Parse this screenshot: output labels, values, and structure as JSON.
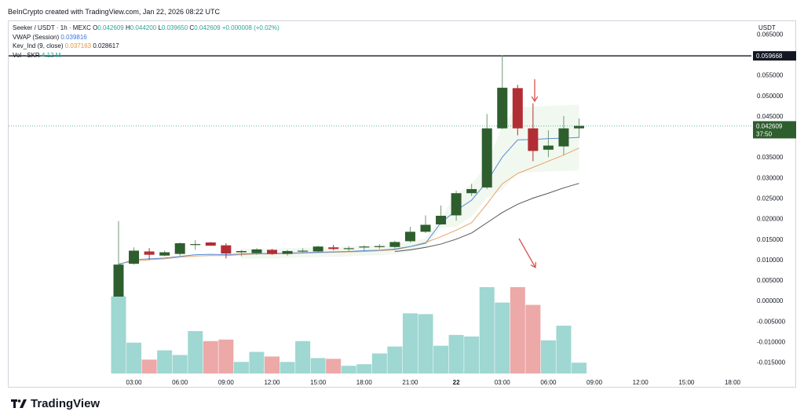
{
  "header": {
    "credit": "BeInCrypto created with TradingView.com, Jan 22, 2026 08:22 UTC"
  },
  "legend": {
    "symbol": "Seeker / USDT · 1h · MEXC",
    "o_label": "O",
    "o_value": "0.042609",
    "h_label": "H",
    "h_value": "0.044200",
    "l_label": "L",
    "l_value": "0.039650",
    "c_label": "C",
    "c_value": "0.042609",
    "change": "+0.000008 (+0.02%)",
    "vwap_label": "VWAP (Session)",
    "vwap_value": "0.039816",
    "kev_label": "Kev_Ind (9, close)",
    "kev_value1": "0.037163",
    "kev_value2": "0.028617",
    "vol_label": "Vol · SKR",
    "vol_value": "4.12 M"
  },
  "price_axis": {
    "currency": "USDT",
    "ticks": [
      "0.065000",
      "0.055000",
      "0.050000",
      "0.045000",
      "0.035000",
      "0.030000",
      "0.025000",
      "0.020000",
      "0.015000",
      "0.010000",
      "0.005000",
      "0.000000",
      "-0.005000",
      "-0.010000",
      "-0.015000"
    ],
    "resistance_tag": "0.059668",
    "price_tag": "0.042609",
    "countdown_tag": "37:50"
  },
  "time_axis": {
    "ticks": [
      "03:00",
      "06:00",
      "09:00",
      "12:00",
      "15:00",
      "18:00",
      "21:00",
      "22",
      "03:00",
      "06:00",
      "09:00",
      "12:00",
      "15:00",
      "18:00"
    ]
  },
  "colors": {
    "up": "#2e5e2e",
    "down": "#b22e35",
    "vol_up": "#9fd7d2",
    "vol_down": "#eda8a8",
    "vwap": "#5b8bd6",
    "kev_fast": "#e8a265",
    "kev_slow": "#555555",
    "arrow": "#d9534f"
  },
  "chart_data": {
    "type": "candlestick",
    "title": "Seeker / USDT · 1h · MEXC",
    "xlabel": "",
    "ylabel": "",
    "ylim": [
      -0.0185,
      0.0685
    ],
    "resistance_level": 0.059668,
    "last_price": 0.042609,
    "times": [
      "02:00",
      "03:00",
      "04:00",
      "05:00",
      "06:00",
      "07:00",
      "08:00",
      "09:00",
      "10:00",
      "11:00",
      "12:00",
      "13:00",
      "14:00",
      "15:00",
      "16:00",
      "17:00",
      "18:00",
      "19:00",
      "20:00",
      "21:00",
      "22:00",
      "23:00",
      "00:00",
      "01:00",
      "02:00",
      "03:00",
      "04:00",
      "05:00",
      "06:00",
      "07:00",
      "08:00"
    ],
    "candles": [
      {
        "o": 0.001,
        "h": 0.0194,
        "l": 0.001,
        "c": 0.0088
      },
      {
        "o": 0.009,
        "h": 0.013,
        "l": 0.0088,
        "c": 0.0122
      },
      {
        "o": 0.012,
        "h": 0.0128,
        "l": 0.01,
        "c": 0.0112
      },
      {
        "o": 0.011,
        "h": 0.0122,
        "l": 0.0108,
        "c": 0.0118
      },
      {
        "o": 0.0114,
        "h": 0.0142,
        "l": 0.011,
        "c": 0.014
      },
      {
        "o": 0.0137,
        "h": 0.0148,
        "l": 0.0124,
        "c": 0.0138
      },
      {
        "o": 0.0142,
        "h": 0.0143,
        "l": 0.0134,
        "c": 0.0134
      },
      {
        "o": 0.0135,
        "h": 0.014,
        "l": 0.0103,
        "c": 0.0115
      },
      {
        "o": 0.0118,
        "h": 0.0124,
        "l": 0.0108,
        "c": 0.0121
      },
      {
        "o": 0.0116,
        "h": 0.0128,
        "l": 0.0112,
        "c": 0.0125
      },
      {
        "o": 0.0124,
        "h": 0.0126,
        "l": 0.0112,
        "c": 0.0114
      },
      {
        "o": 0.0114,
        "h": 0.0124,
        "l": 0.011,
        "c": 0.0121
      },
      {
        "o": 0.012,
        "h": 0.0128,
        "l": 0.0118,
        "c": 0.0122
      },
      {
        "o": 0.012,
        "h": 0.0134,
        "l": 0.0118,
        "c": 0.0132
      },
      {
        "o": 0.013,
        "h": 0.0136,
        "l": 0.0123,
        "c": 0.0126
      },
      {
        "o": 0.0126,
        "h": 0.0133,
        "l": 0.012,
        "c": 0.0128
      },
      {
        "o": 0.013,
        "h": 0.0135,
        "l": 0.0123,
        "c": 0.0132
      },
      {
        "o": 0.0131,
        "h": 0.0138,
        "l": 0.0126,
        "c": 0.0133
      },
      {
        "o": 0.0131,
        "h": 0.0146,
        "l": 0.0127,
        "c": 0.0143
      },
      {
        "o": 0.0145,
        "h": 0.018,
        "l": 0.0142,
        "c": 0.0168
      },
      {
        "o": 0.0168,
        "h": 0.0208,
        "l": 0.0165,
        "c": 0.0185
      },
      {
        "o": 0.0186,
        "h": 0.0232,
        "l": 0.0185,
        "c": 0.0207
      },
      {
        "o": 0.0208,
        "h": 0.0268,
        "l": 0.0195,
        "c": 0.0262
      },
      {
        "o": 0.0262,
        "h": 0.0285,
        "l": 0.0255,
        "c": 0.0272
      },
      {
        "o": 0.0276,
        "h": 0.0455,
        "l": 0.0272,
        "c": 0.042
      },
      {
        "o": 0.042,
        "h": 0.0598,
        "l": 0.0418,
        "c": 0.0519
      },
      {
        "o": 0.0518,
        "h": 0.0526,
        "l": 0.0403,
        "c": 0.042
      },
      {
        "o": 0.042,
        "h": 0.0481,
        "l": 0.034,
        "c": 0.0365
      },
      {
        "o": 0.0368,
        "h": 0.0415,
        "l": 0.035,
        "c": 0.0378
      },
      {
        "o": 0.0376,
        "h": 0.045,
        "l": 0.0355,
        "c": 0.042
      },
      {
        "o": 0.042,
        "h": 0.0444,
        "l": 0.0397,
        "c": 0.0426
      }
    ],
    "volume": [
      100,
      40,
      18,
      30,
      24,
      55,
      42,
      44,
      15,
      28,
      22,
      15,
      42,
      20,
      19,
      10,
      12,
      26,
      35,
      78,
      77,
      36,
      50,
      48,
      112,
      92,
      112,
      89,
      43,
      62,
      14
    ],
    "vwap": [
      0.0088,
      0.01,
      0.0102,
      0.0104,
      0.0108,
      0.0112,
      0.0113,
      0.0112,
      0.0114,
      0.0115,
      0.0115,
      0.0116,
      0.0117,
      0.0118,
      0.0119,
      0.012,
      0.0122,
      0.0123,
      0.0126,
      0.0132,
      0.014,
      0.019,
      0.022,
      0.0245,
      0.029,
      0.035,
      0.0392,
      0.0393,
      0.0395,
      0.0396,
      0.0398
    ],
    "kev_fast": [
      0.009,
      0.0096,
      0.01,
      0.0102,
      0.0106,
      0.0109,
      0.011,
      0.011,
      0.0112,
      0.0114,
      0.0114,
      0.0115,
      0.0116,
      0.0117,
      0.0118,
      0.0119,
      0.012,
      0.0122,
      0.0124,
      0.0132,
      0.0142,
      0.0156,
      0.0172,
      0.019,
      0.0236,
      0.0285,
      0.031,
      0.0325,
      0.034,
      0.0355,
      0.0372
    ],
    "kev_slow": [
      null,
      null,
      null,
      null,
      null,
      null,
      null,
      null,
      null,
      null,
      null,
      null,
      null,
      null,
      null,
      null,
      null,
      null,
      0.012,
      0.0124,
      0.013,
      0.0138,
      0.015,
      0.0165,
      0.019,
      0.0215,
      0.0235,
      0.025,
      0.0262,
      0.0275,
      0.0286
    ],
    "volume_max": 115
  }
}
